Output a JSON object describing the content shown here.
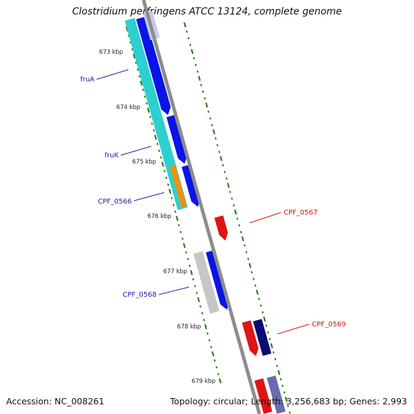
{
  "title": "Clostridium perfringens ATCC 13124, complete genome",
  "footer": {
    "accession": "Accession: NC_008261",
    "summary": "Topology: circular; Length: 3,256,683 bp; Genes: 2,993"
  },
  "scale_labels": [
    "673 kbp",
    "674 kbp",
    "675 kbp",
    "676 kbp",
    "677 kbp",
    "678 kbp",
    "679 kbp"
  ],
  "gene_labels": [
    {
      "text": "fruA",
      "color": "#1a1aa6"
    },
    {
      "text": "fruK",
      "color": "#1a1aa6"
    },
    {
      "text": "CPF_0566",
      "color": "#1a1aa6"
    },
    {
      "text": "CPF_0567",
      "color": "#d01010"
    },
    {
      "text": "CPF_0568",
      "color": "#1a1aa6"
    },
    {
      "text": "CPF_0569",
      "color": "#d01010"
    }
  ],
  "colors": {
    "backbone": "#8c8c8c",
    "tick": "#2a7a1a",
    "cds_forward": "#0a14e6",
    "cds_reverse": "#e11414",
    "cds_forward_dark": "#0a0a70",
    "cds_reverse_light": "#e94848",
    "cds_forward_light": "#6a6ab0",
    "cog_cyan": "#2ecfd0",
    "cog_orange": "#f0920a",
    "cog_grey": "#c6c6c6"
  }
}
